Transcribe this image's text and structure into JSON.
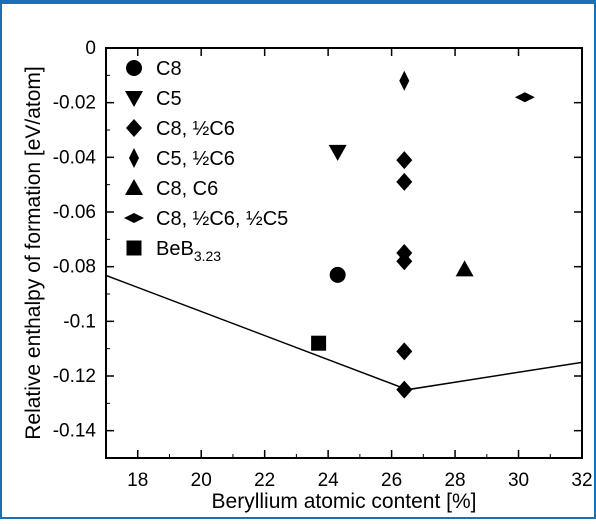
{
  "chart_data": {
    "type": "scatter",
    "xlabel": "Beryllium atomic content [%]",
    "ylabel": "Relative enthalpy of formation [eV/atom]",
    "xlim": [
      17,
      32
    ],
    "ylim": [
      -0.15,
      0
    ],
    "x_ticks": [
      18,
      20,
      22,
      24,
      26,
      28,
      30,
      32
    ],
    "x_tick_labels": [
      "18",
      "20",
      "22",
      "24",
      "26",
      "28",
      "30",
      "32"
    ],
    "y_ticks": [
      0,
      -0.02,
      -0.04,
      -0.06,
      -0.08,
      -0.1,
      -0.12,
      -0.14
    ],
    "y_tick_labels": [
      "0",
      "-0.02",
      "-0.04",
      "-0.06",
      "-0.08",
      "-0.1",
      "-0.12",
      "-0.14"
    ],
    "grid": false,
    "legend_position": "top-left",
    "series": [
      {
        "name": "C8",
        "marker": "circle",
        "points": [
          [
            24.3,
            -0.083
          ]
        ]
      },
      {
        "name": "C5",
        "marker": "triangle-down",
        "points": [
          [
            24.3,
            -0.038
          ]
        ]
      },
      {
        "name": "C8, ½C6",
        "marker": "diamond",
        "points": [
          [
            26.4,
            -0.041
          ],
          [
            26.4,
            -0.049
          ],
          [
            26.4,
            -0.075
          ],
          [
            26.4,
            -0.078
          ],
          [
            26.4,
            -0.111
          ],
          [
            26.4,
            -0.125
          ]
        ]
      },
      {
        "name": "C5, ½C6",
        "marker": "thin-diamond",
        "points": [
          [
            26.4,
            -0.012
          ]
        ]
      },
      {
        "name": "C8, C6",
        "marker": "triangle-up",
        "points": [
          [
            28.3,
            -0.081
          ]
        ]
      },
      {
        "name": "C8, ½C6, ½C5",
        "marker": "wide-diamond",
        "points": [
          [
            30.2,
            -0.018
          ]
        ]
      },
      {
        "name": "BeB",
        "name_sub": "3.23",
        "marker": "square",
        "points": [
          [
            23.7,
            -0.108
          ]
        ]
      }
    ],
    "hull_line": [
      [
        16.5,
        -0.081
      ],
      [
        26.5,
        -0.125
      ],
      [
        32.0,
        -0.115
      ]
    ]
  }
}
